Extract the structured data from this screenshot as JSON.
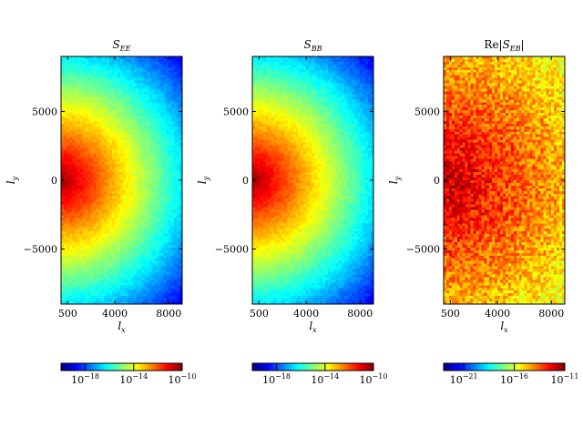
{
  "chart_data": [
    {
      "type": "heatmap",
      "title": "S_EE",
      "title_main": "S",
      "title_sub": "EE",
      "xlabel": "l_x",
      "ylabel": "l_y",
      "xlim": [
        0,
        9000
      ],
      "ylim": [
        -9000,
        9000
      ],
      "x_ticks": [
        500,
        4000,
        8000
      ],
      "x_tick_labels": [
        "500",
        "4000",
        "8000"
      ],
      "y_ticks": [
        5000,
        0,
        -5000
      ],
      "y_tick_labels": [
        "5000",
        "0",
        "−5000"
      ],
      "colorbar": {
        "scale": "log",
        "colormap": "jet",
        "range": [
          1e-20,
          1e-10
        ],
        "ticks": [
          1e-18,
          1e-14,
          1e-10
        ],
        "tick_bases": [
          "10",
          "10",
          "10"
        ],
        "tick_exponents": [
          "−18",
          "−14",
          "−10"
        ]
      },
      "field": {
        "peak_exponent": -10.3,
        "falloff_per_1000": 0.68,
        "noise": 0.25
      }
    },
    {
      "type": "heatmap",
      "title": "S_BB",
      "title_main": "S",
      "title_sub": "BB",
      "xlabel": "l_x",
      "ylabel": "l_y",
      "xlim": [
        0,
        9000
      ],
      "ylim": [
        -9000,
        9000
      ],
      "x_ticks": [
        500,
        4000,
        8000
      ],
      "x_tick_labels": [
        "500",
        "4000",
        "8000"
      ],
      "y_ticks": [
        5000,
        0,
        -5000
      ],
      "y_tick_labels": [
        "5000",
        "0",
        "−5000"
      ],
      "colorbar": {
        "scale": "log",
        "colormap": "jet",
        "range": [
          1e-20,
          1e-10
        ],
        "ticks": [
          1e-18,
          1e-14,
          1e-10
        ],
        "tick_bases": [
          "10",
          "10",
          "10"
        ],
        "tick_exponents": [
          "−18",
          "−14",
          "−10"
        ]
      },
      "field": {
        "peak_exponent": -10.3,
        "falloff_per_1000": 0.68,
        "noise": 0.25
      }
    },
    {
      "type": "heatmap",
      "title": "Re|S_EB|",
      "title_prefix": "Re|",
      "title_main": "S",
      "title_sub": "EB",
      "title_suffix": "|",
      "xlabel": "l_x",
      "ylabel": "l_y",
      "xlim": [
        0,
        9000
      ],
      "ylim": [
        -9000,
        9000
      ],
      "x_ticks": [
        500,
        4000,
        8000
      ],
      "x_tick_labels": [
        "500",
        "4000",
        "8000"
      ],
      "y_ticks": [
        5000,
        0,
        -5000
      ],
      "y_tick_labels": [
        "5000",
        "0",
        "−5000"
      ],
      "colorbar": {
        "scale": "log",
        "colormap": "jet",
        "range": [
          1e-23,
          1e-11
        ],
        "ticks": [
          1e-21,
          1e-16,
          1e-11
        ],
        "tick_bases": [
          "10",
          "10",
          "10"
        ],
        "tick_exponents": [
          "−21",
          "−16",
          "−11"
        ]
      },
      "field": {
        "peak_exponent": -11.7,
        "falloff_per_1000": 0.33,
        "noise": 1.1
      }
    }
  ]
}
